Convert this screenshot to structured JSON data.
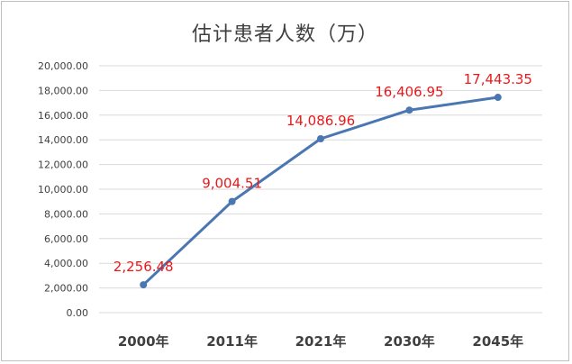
{
  "chart_data": {
    "type": "line",
    "title": "估计患者人数（万）",
    "categories": [
      "2000年",
      "2011年",
      "2021年",
      "2030年",
      "2045年"
    ],
    "series": [
      {
        "values": [
          2256.48,
          9004.51,
          14086.96,
          16406.95,
          17443.35
        ]
      }
    ],
    "data_labels": [
      "2,256.48",
      "9,004.51",
      "14,086.96",
      "16,406.95",
      "17,443.35"
    ],
    "y_ticks": [
      "0.00",
      "2,000.00",
      "4,000.00",
      "6,000.00",
      "8,000.00",
      "10,000.00",
      "12,000.00",
      "14,000.00",
      "16,000.00",
      "18,000.00",
      "20,000.00"
    ],
    "ylim": [
      0,
      20000
    ],
    "xlabel": "",
    "ylabel": "",
    "grid": true,
    "line_color": "#4a76b2",
    "label_color": "#e8191c"
  }
}
